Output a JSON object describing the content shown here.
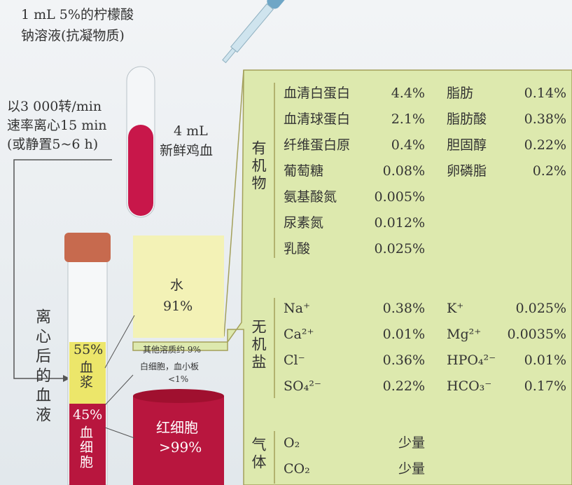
{
  "dropper_label": [
    "1 mL 5%的柠檬酸",
    "钠溶液(抗凝物质)"
  ],
  "centrifuge_label": [
    "以3 000转/min",
    "速率离心15 min",
    "(或静置5~6 h)"
  ],
  "blood_label": [
    "4 mL",
    "新鲜鸡血"
  ],
  "tube_label": "离心后的血液",
  "plasma": {
    "percent": "55%",
    "label": "血浆"
  },
  "cells": {
    "percent": "45%",
    "label": "血细胞"
  },
  "water": {
    "label": "水",
    "percent": "91%"
  },
  "other_solutes": "其他溶质约 9%",
  "wbc": {
    "label": "白细胞，血小板",
    "percent": "<1%"
  },
  "rbc": {
    "label": "红细胞",
    "percent": ">99%"
  },
  "composition": {
    "organic": {
      "heading": "有机物",
      "rows": [
        [
          "血清白蛋白",
          "4.4%",
          "脂肪",
          "0.14%"
        ],
        [
          "血清球蛋白",
          "2.1%",
          "脂肪酸",
          "0.38%"
        ],
        [
          "纤维蛋白原",
          "0.4%",
          "胆固醇",
          "0.22%"
        ],
        [
          "葡萄糖",
          "0.08%",
          "卵磷脂",
          "0.2%"
        ],
        [
          "氨基酸氮",
          "0.005%"
        ],
        [
          "尿素氮",
          "0.012%"
        ],
        [
          "乳酸",
          "0.025%"
        ]
      ]
    },
    "inorganic": {
      "heading": "无机盐",
      "rows": [
        [
          "Na⁺",
          "0.38%",
          "K⁺",
          "0.025%"
        ],
        [
          "Ca²⁺",
          "0.01%",
          "Mg²⁺",
          "0.0035%"
        ],
        [
          "Cl⁻",
          "0.36%",
          "HPO₄²⁻",
          "0.01%"
        ],
        [
          "SO₄²⁻",
          "0.22%",
          "HCO₃⁻",
          "0.17%"
        ]
      ]
    },
    "gas": {
      "heading": "气体",
      "rows": [
        [
          "O₂",
          "少量"
        ],
        [
          "CO₂",
          "少量"
        ]
      ]
    }
  }
}
